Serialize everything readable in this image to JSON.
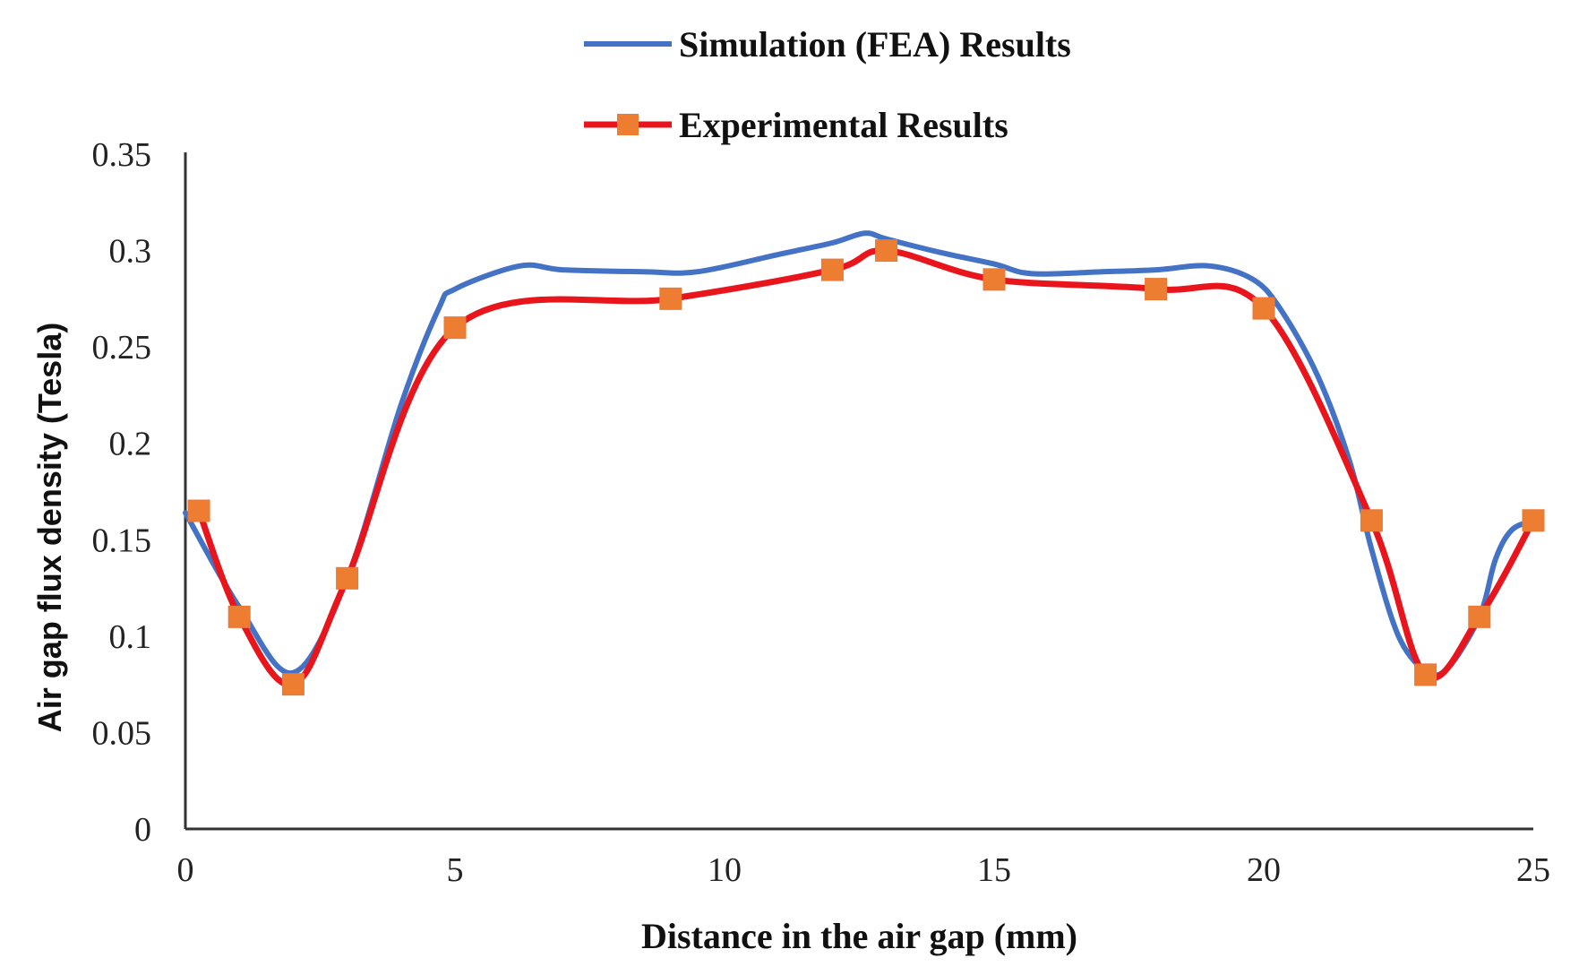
{
  "chart_data": {
    "type": "line",
    "title": "",
    "xlabel": "Distance in the air gap (mm)",
    "ylabel": "Air gap flux density (Tesla)",
    "xlim": [
      0,
      25
    ],
    "ylim": [
      0,
      0.35
    ],
    "x_ticks": [
      "0",
      "5",
      "10",
      "15",
      "20",
      "25"
    ],
    "x_tick_values": [
      0,
      5,
      10,
      15,
      20,
      25
    ],
    "y_ticks": [
      "0",
      "0.05",
      "0.1",
      "0.15",
      "0.2",
      "0.25",
      "0.3",
      "0.35"
    ],
    "y_tick_values": [
      0,
      0.05,
      0.1,
      0.15,
      0.2,
      0.25,
      0.3,
      0.35
    ],
    "grid": false,
    "legend_position": "top-center",
    "series": [
      {
        "name": "Simulation (FEA) Results",
        "color": "#4472C4",
        "markers": false,
        "points": [
          [
            0,
            0.164
          ],
          [
            1,
            0.115
          ],
          [
            2,
            0.081
          ],
          [
            3,
            0.13
          ],
          [
            4,
            0.22
          ],
          [
            4.7,
            0.27
          ],
          [
            5,
            0.28
          ],
          [
            6.2,
            0.292
          ],
          [
            7,
            0.29
          ],
          [
            8.5,
            0.289
          ],
          [
            9.5,
            0.289
          ],
          [
            11,
            0.298
          ],
          [
            12,
            0.304
          ],
          [
            12.6,
            0.309
          ],
          [
            13,
            0.306
          ],
          [
            14,
            0.299
          ],
          [
            15,
            0.293
          ],
          [
            15.7,
            0.288
          ],
          [
            17,
            0.289
          ],
          [
            18,
            0.29
          ],
          [
            19,
            0.292
          ],
          [
            19.8,
            0.285
          ],
          [
            20.3,
            0.27
          ],
          [
            21,
            0.235
          ],
          [
            21.6,
            0.19
          ],
          [
            22,
            0.145
          ],
          [
            22.5,
            0.1
          ],
          [
            23,
            0.082
          ],
          [
            23.4,
            0.083
          ],
          [
            24,
            0.11
          ],
          [
            24.3,
            0.14
          ],
          [
            24.6,
            0.155
          ],
          [
            25,
            0.16
          ]
        ]
      },
      {
        "name": "Experimental Results",
        "color": "#E8161C",
        "marker_color": "#ED7D31",
        "markers": true,
        "points": [
          [
            0.25,
            0.165
          ],
          [
            1,
            0.11
          ],
          [
            2,
            0.075
          ],
          [
            3,
            0.13
          ],
          [
            5,
            0.26
          ],
          [
            9,
            0.275
          ],
          [
            12,
            0.29
          ],
          [
            13,
            0.3
          ],
          [
            15,
            0.285
          ],
          [
            18,
            0.28
          ],
          [
            20,
            0.27
          ],
          [
            22,
            0.16
          ],
          [
            23,
            0.08
          ],
          [
            24,
            0.11
          ],
          [
            25,
            0.16
          ]
        ]
      }
    ]
  }
}
